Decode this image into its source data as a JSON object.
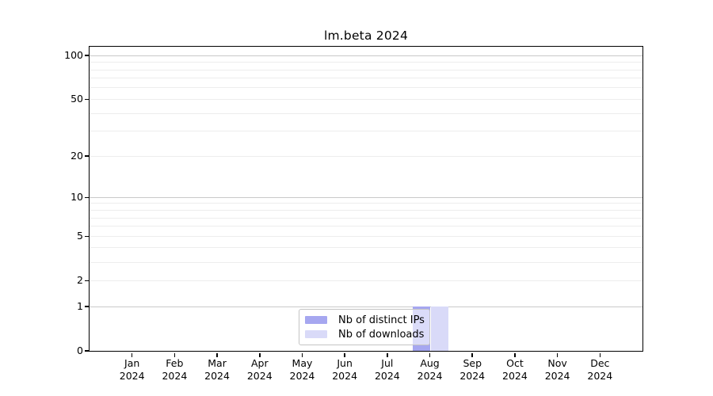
{
  "title": "lm.beta 2024",
  "chart_data": {
    "type": "bar",
    "title": "lm.beta 2024",
    "categories": [
      "Jan",
      "Feb",
      "Mar",
      "Apr",
      "May",
      "Jun",
      "Jul",
      "Aug",
      "Sep",
      "Oct",
      "Nov",
      "Dec"
    ],
    "year": "2024",
    "series": [
      {
        "name": "Nb of distinct IPs",
        "color": "#a6a7f0",
        "values": [
          0,
          0,
          0,
          0,
          0,
          0,
          0,
          1,
          0,
          0,
          0,
          0
        ]
      },
      {
        "name": "Nb of downloads",
        "color": "#d9daf8",
        "values": [
          0,
          0,
          0,
          0,
          0,
          0,
          0,
          1,
          0,
          0,
          0,
          0
        ]
      }
    ],
    "y_axis": {
      "scale": "log10(value+1)",
      "ticks": [
        100,
        50,
        20,
        10,
        5,
        2,
        1,
        0
      ],
      "gridlines_major": [
        1,
        10,
        100
      ],
      "gridlines_minor": [
        2,
        3,
        4,
        5,
        6,
        7,
        8,
        9,
        20,
        30,
        40,
        50,
        60,
        70,
        80,
        90
      ],
      "ylim": [
        0,
        115
      ]
    },
    "legend_position": "bottom-center-inside",
    "colors": {
      "grid_major": "#c9c9c9",
      "grid_minor": "#ededed",
      "axis": "#000000",
      "background": "#ffffff"
    }
  }
}
